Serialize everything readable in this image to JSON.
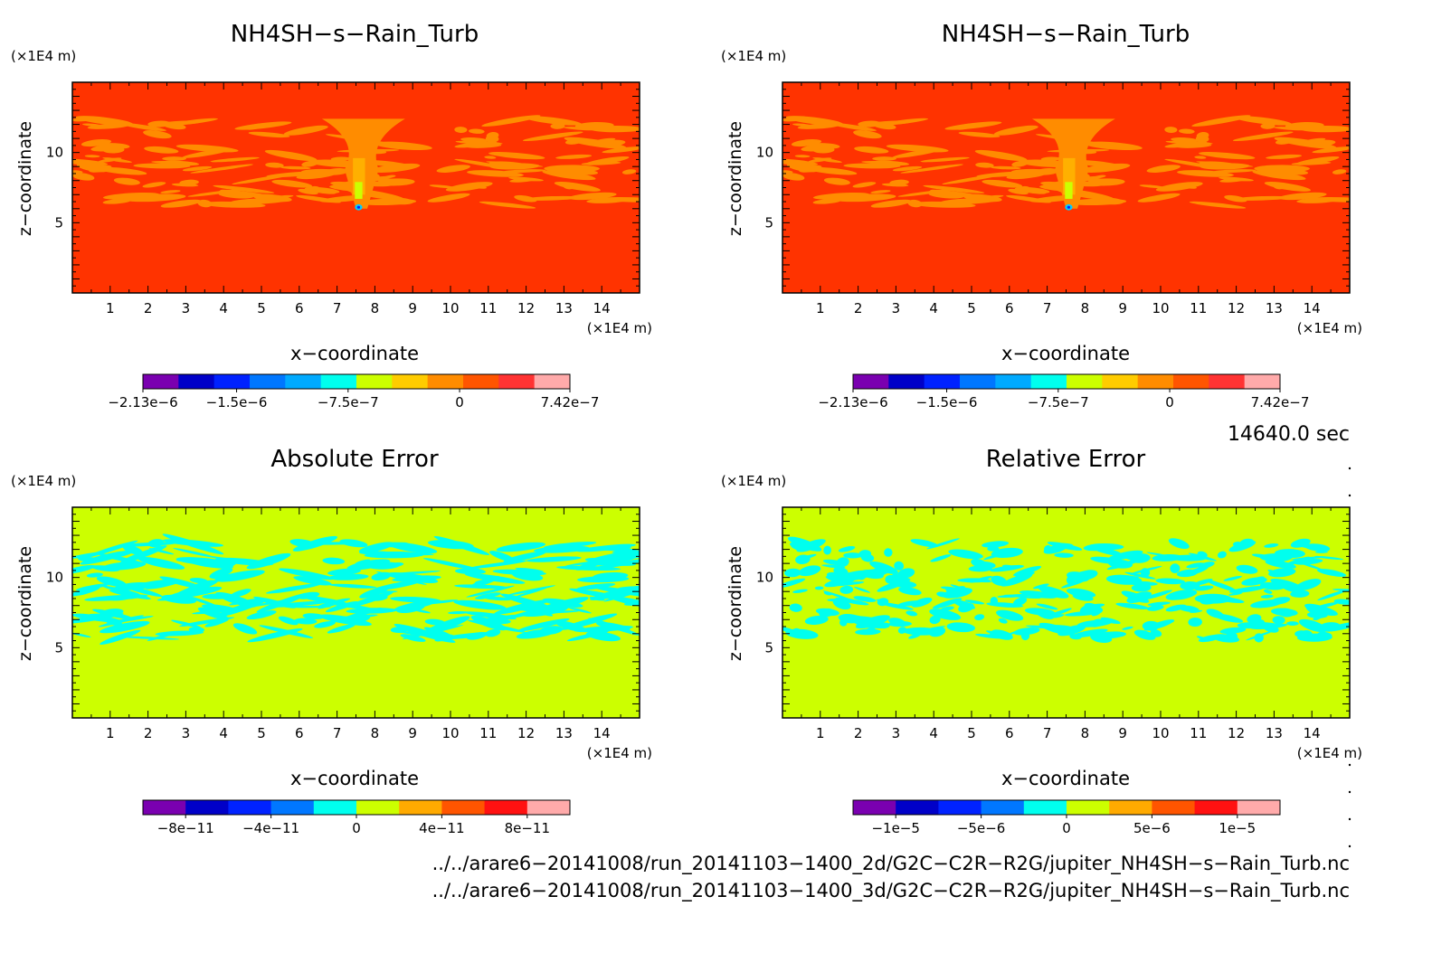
{
  "panels": [
    {
      "title": "NH4SH−s−Rain_Turb",
      "z_unit": "(×1E4 m)",
      "x_unit": "(×1E4 m)",
      "xlabel": "x−coordinate",
      "ylabel": "z−coordinate",
      "x_ticks": [
        "1",
        "2",
        "3",
        "4",
        "5",
        "6",
        "7",
        "8",
        "9",
        "10",
        "11",
        "12",
        "13",
        "14"
      ],
      "y_ticks": [
        "5",
        "10"
      ],
      "colorbar_labels": [
        "−2.13e−6",
        "−1.5e−6",
        "−7.5e−7",
        "0",
        "7.42e−7"
      ]
    },
    {
      "title": "NH4SH−s−Rain_Turb",
      "z_unit": "(×1E4 m)",
      "x_unit": "(×1E4 m)",
      "xlabel": "x−coordinate",
      "ylabel": "z−coordinate",
      "x_ticks": [
        "1",
        "2",
        "3",
        "4",
        "5",
        "6",
        "7",
        "8",
        "9",
        "10",
        "11",
        "12",
        "13",
        "14"
      ],
      "y_ticks": [
        "5",
        "10"
      ],
      "colorbar_labels": [
        "−2.13e−6",
        "−1.5e−6",
        "−7.5e−7",
        "0",
        "7.42e−7"
      ]
    },
    {
      "title": "Absolute Error",
      "z_unit": "(×1E4 m)",
      "x_unit": "(×1E4 m)",
      "xlabel": "x−coordinate",
      "ylabel": "z−coordinate",
      "x_ticks": [
        "1",
        "2",
        "3",
        "4",
        "5",
        "6",
        "7",
        "8",
        "9",
        "10",
        "11",
        "12",
        "13",
        "14"
      ],
      "y_ticks": [
        "5",
        "10"
      ],
      "colorbar_labels": [
        "−8e−11",
        "−4e−11",
        "0",
        "4e−11",
        "8e−11"
      ]
    },
    {
      "title": "Relative Error",
      "z_unit": "(×1E4 m)",
      "x_unit": "(×1E4 m)",
      "xlabel": "x−coordinate",
      "ylabel": "z−coordinate",
      "x_ticks": [
        "1",
        "2",
        "3",
        "4",
        "5",
        "6",
        "7",
        "8",
        "9",
        "10",
        "11",
        "12",
        "13",
        "14"
      ],
      "y_ticks": [
        "5",
        "10"
      ],
      "colorbar_labels": [
        "−1e−5",
        "−5e−6",
        "0",
        "5e−6",
        "1e−5"
      ]
    }
  ],
  "time_label": "14640.0 sec",
  "file_paths": [
    "../../arare6−20141008/run_20141103−1400_2d/G2C−C2R−R2G/jupiter_NH4SH−s−Rain_Turb.nc",
    "../../arare6−20141008/run_20141103−1400_3d/G2C−C2R−R2G/jupiter_NH4SH−s−Rain_Turb.nc"
  ],
  "colors": {
    "field_background": "#ff3300",
    "field_band": "#ff8c00",
    "field_core": "#ffb000",
    "field_anomaly": "#00ccff",
    "error_background": "#ccff00",
    "error_pattern": "#00ffee",
    "colorbar_fields": [
      "#7a00b0",
      "#0000c8",
      "#0022ff",
      "#0077ff",
      "#00aaff",
      "#00ffee",
      "#ccff00",
      "#ffcc00",
      "#ff8c00",
      "#ff5500",
      "#ff3333",
      "#ffaaaa"
    ],
    "colorbar_errors": [
      "#7a00b0",
      "#0000c8",
      "#0022ff",
      "#0077ff",
      "#00ffee",
      "#ccff00",
      "#ffaa00",
      "#ff5500",
      "#ff1111",
      "#ffaaaa"
    ]
  },
  "chart_data": [
    {
      "type": "heatmap",
      "title": "NH4SH−s−Rain_Turb",
      "xlabel": "x−coordinate",
      "ylabel": "z−coordinate",
      "xlim": [
        0,
        15
      ],
      "ylim": [
        0,
        15
      ],
      "x_unit": "(×1E4 m)",
      "z_unit": "(×1E4 m)",
      "colorbar_range": [
        -2.13e-06,
        7.42e-07
      ],
      "colorbar_ticks": [
        -2.13e-06,
        -1.5e-06,
        -7.5e-07,
        0,
        7.42e-07
      ]
    },
    {
      "type": "heatmap",
      "title": "NH4SH−s−Rain_Turb",
      "xlabel": "x−coordinate",
      "ylabel": "z−coordinate",
      "xlim": [
        0,
        15
      ],
      "ylim": [
        0,
        15
      ],
      "x_unit": "(×1E4 m)",
      "z_unit": "(×1E4 m)",
      "colorbar_range": [
        -2.13e-06,
        7.42e-07
      ],
      "colorbar_ticks": [
        -2.13e-06,
        -1.5e-06,
        -7.5e-07,
        0,
        7.42e-07
      ]
    },
    {
      "type": "heatmap",
      "title": "Absolute Error",
      "xlabel": "x−coordinate",
      "ylabel": "z−coordinate",
      "xlim": [
        0,
        15
      ],
      "ylim": [
        0,
        15
      ],
      "x_unit": "(×1E4 m)",
      "z_unit": "(×1E4 m)",
      "colorbar_range": [
        -1e-10,
        1e-10
      ],
      "colorbar_ticks": [
        -8e-11,
        -4e-11,
        0,
        4e-11,
        8e-11
      ]
    },
    {
      "type": "heatmap",
      "title": "Relative Error",
      "xlabel": "x−coordinate",
      "ylabel": "z−coordinate",
      "xlim": [
        0,
        15
      ],
      "ylim": [
        0,
        15
      ],
      "x_unit": "(×1E4 m)",
      "z_unit": "(×1E4 m)",
      "colorbar_range": [
        -1.25e-05,
        1.25e-05
      ],
      "colorbar_ticks": [
        -1e-05,
        -5e-06,
        0,
        5e-06,
        1e-05
      ]
    }
  ]
}
